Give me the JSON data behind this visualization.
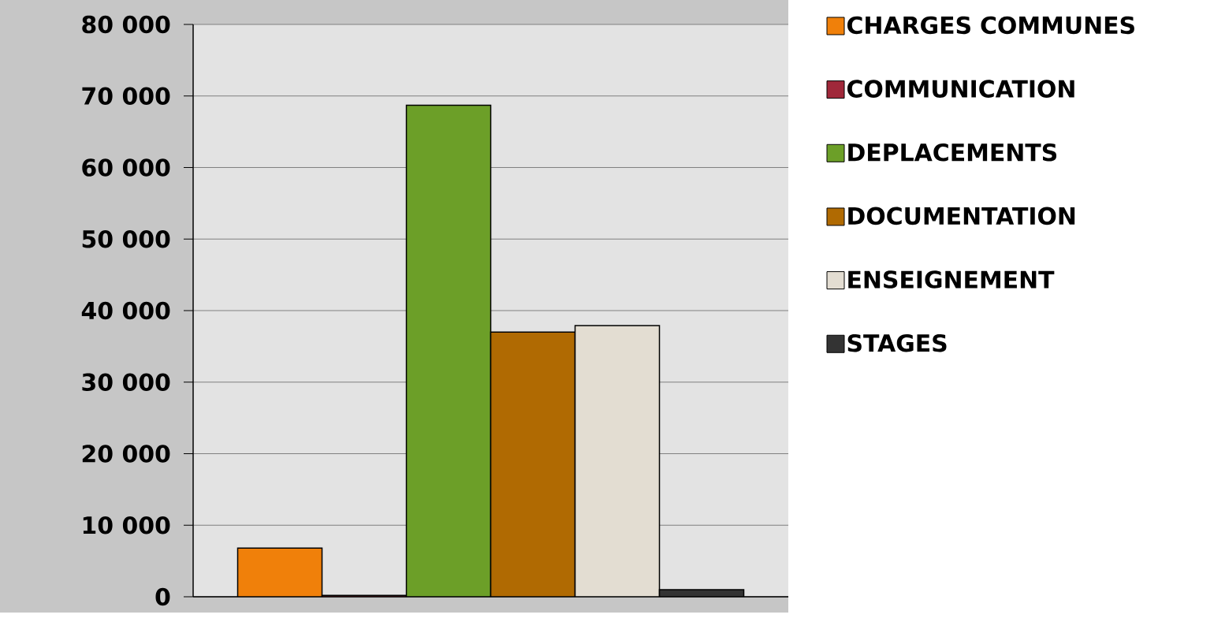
{
  "chart_data": {
    "type": "bar",
    "categories": [
      null
    ],
    "series": [
      {
        "name": "CHARGES COMMUNES",
        "color": "#f0800a",
        "values": [
          6800
        ]
      },
      {
        "name": "COMMUNICATION",
        "color": "#a0283a",
        "values": [
          200
        ]
      },
      {
        "name": "DEPLACEMENTS",
        "color": "#6c9f28",
        "values": [
          68700
        ]
      },
      {
        "name": "DOCUMENTATION",
        "color": "#b06a02",
        "values": [
          37000
        ]
      },
      {
        "name": "ENSEIGNEMENT",
        "color": "#e3ddd2",
        "values": [
          37900
        ]
      },
      {
        "name": "STAGES",
        "color": "#333333",
        "values": [
          1000
        ]
      }
    ],
    "ylim": [
      0,
      80000
    ],
    "yticks": [
      {
        "value": 0,
        "label": "0"
      },
      {
        "value": 10000,
        "label": "10 000"
      },
      {
        "value": 20000,
        "label": "20 000"
      },
      {
        "value": 30000,
        "label": "30 000"
      },
      {
        "value": 40000,
        "label": "40 000"
      },
      {
        "value": 50000,
        "label": "50 000"
      },
      {
        "value": 60000,
        "label": "60 000"
      },
      {
        "value": 70000,
        "label": "70 000"
      },
      {
        "value": 80000,
        "label": "80 000"
      }
    ],
    "grid": "y",
    "legend": "right",
    "tick_labels": "y"
  }
}
